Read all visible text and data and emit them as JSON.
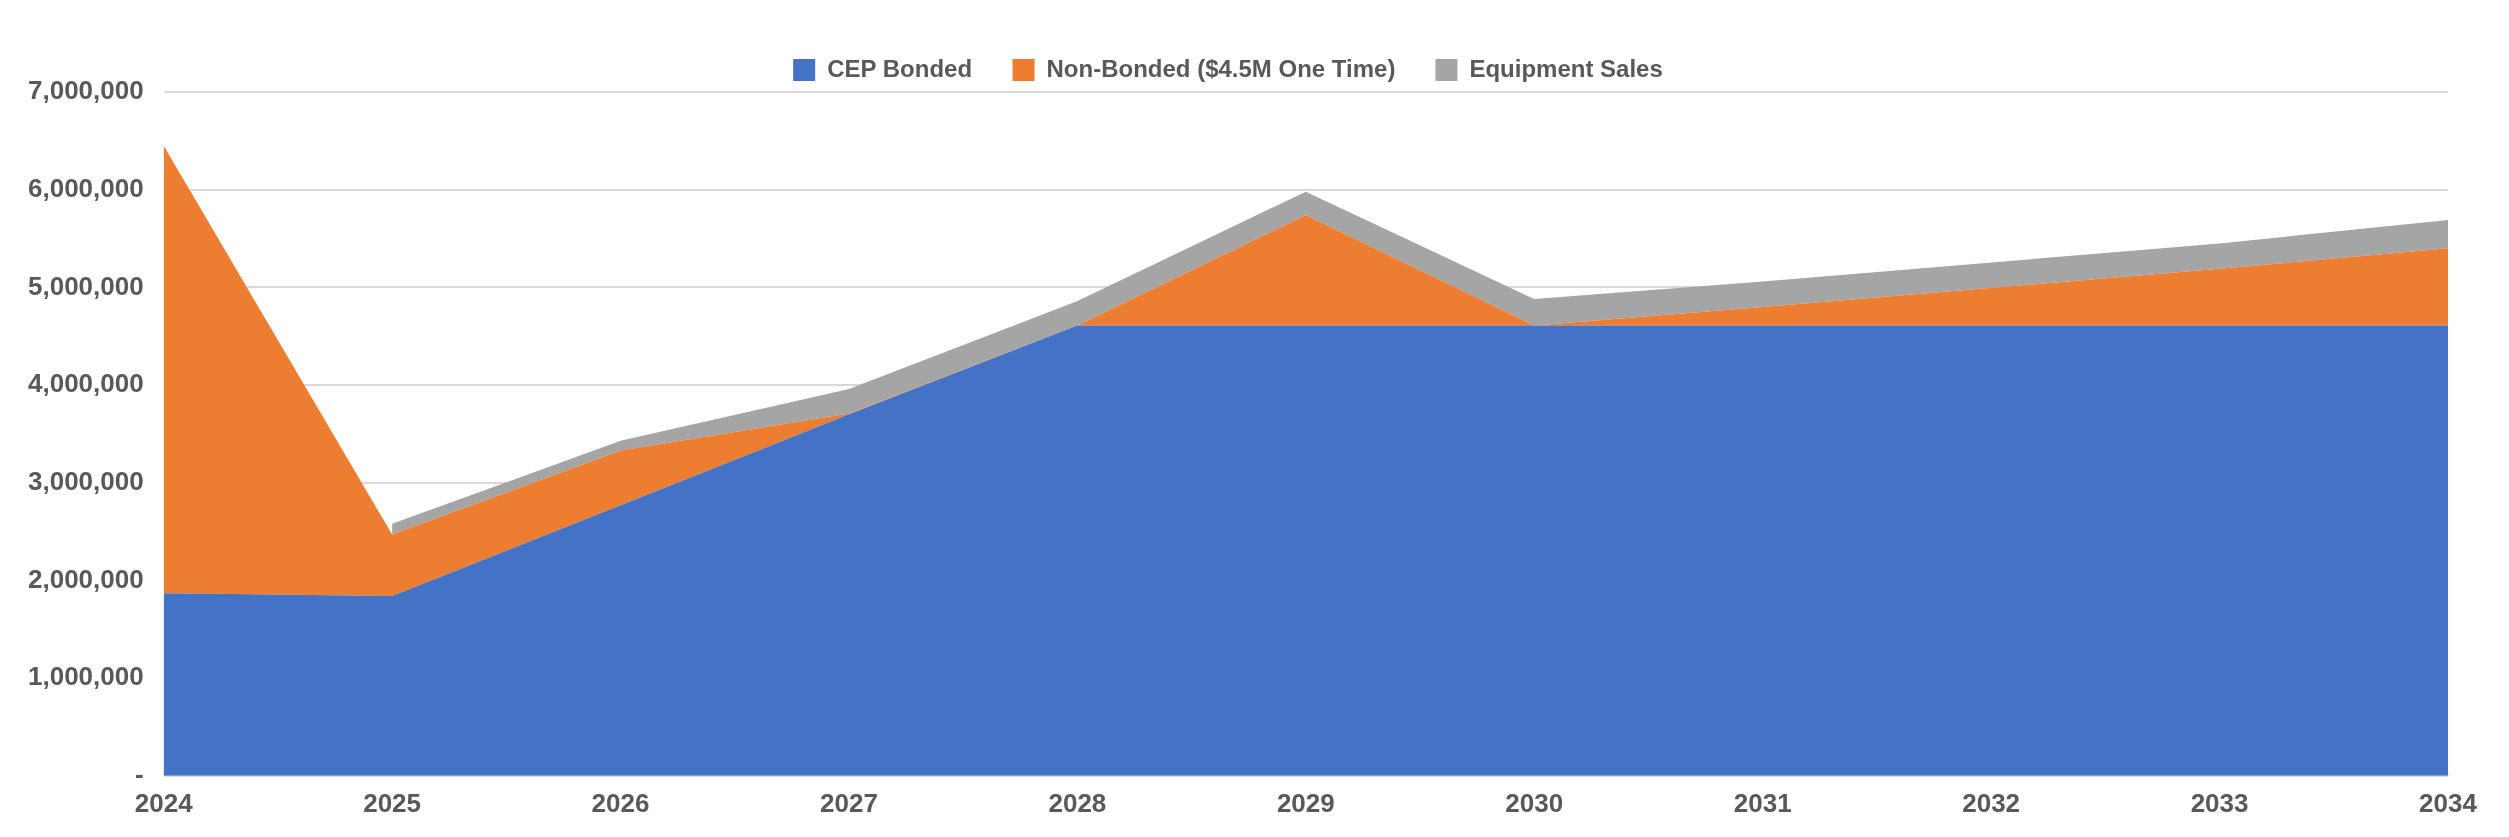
{
  "chart_data": {
    "type": "area",
    "stacked": true,
    "categories": [
      "2024",
      "2025",
      "2026",
      "2027",
      "2028",
      "2029",
      "2030",
      "2031",
      "2032",
      "2033",
      "2034"
    ],
    "series": [
      {
        "name": "CEP Bonded",
        "color": "#4472c4",
        "values": [
          1870000,
          1840000,
          2770000,
          3700000,
          4610000,
          4610000,
          4610000,
          4610000,
          4610000,
          4610000,
          4610000
        ]
      },
      {
        "name": "Non-Bonded ($4.5M One Time)",
        "color": "#ed7d31",
        "values": [
          4580000,
          630000,
          560000,
          10000,
          0,
          1130000,
          0,
          190000,
          null,
          580000,
          790000
        ]
      },
      {
        "name": "Equipment Sales",
        "color": "#a5a5a5",
        "values": [
          null,
          110000,
          100000,
          250000,
          250000,
          240000,
          270000,
          260000,
          null,
          260000,
          290000
        ]
      }
    ],
    "ylim": [
      0,
      7000000
    ],
    "yticks": [
      {
        "value": 0,
        "label": "-"
      },
      {
        "value": 1000000,
        "label": "1,000,000"
      },
      {
        "value": 2000000,
        "label": "2,000,000"
      },
      {
        "value": 3000000,
        "label": "3,000,000"
      },
      {
        "value": 4000000,
        "label": "4,000,000"
      },
      {
        "value": 5000000,
        "label": "5,000,000"
      },
      {
        "value": 6000000,
        "label": "6,000,000"
      },
      {
        "value": 7000000,
        "label": "7,000,000"
      }
    ],
    "grid": "y",
    "legend": "top"
  }
}
